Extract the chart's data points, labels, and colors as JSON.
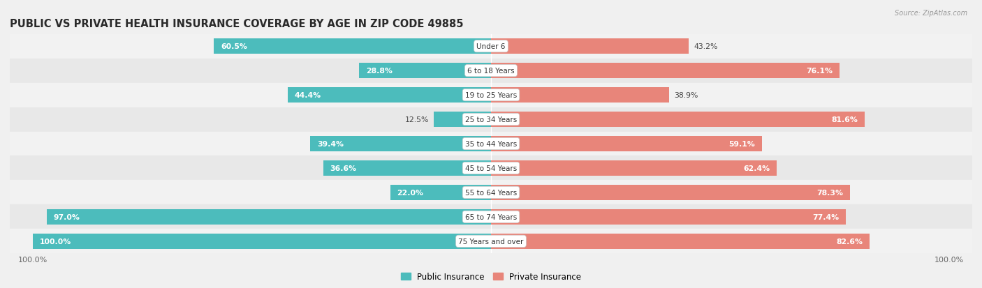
{
  "title": "PUBLIC VS PRIVATE HEALTH INSURANCE COVERAGE BY AGE IN ZIP CODE 49885",
  "source": "Source: ZipAtlas.com",
  "categories": [
    "Under 6",
    "6 to 18 Years",
    "19 to 25 Years",
    "25 to 34 Years",
    "35 to 44 Years",
    "45 to 54 Years",
    "55 to 64 Years",
    "65 to 74 Years",
    "75 Years and over"
  ],
  "public_values": [
    60.5,
    28.8,
    44.4,
    12.5,
    39.4,
    36.6,
    22.0,
    97.0,
    100.0
  ],
  "private_values": [
    43.2,
    76.1,
    38.9,
    81.6,
    59.1,
    62.4,
    78.3,
    77.4,
    82.6
  ],
  "public_color": "#4cbcbc",
  "private_color": "#e8857a",
  "public_label": "Public Insurance",
  "private_label": "Private Insurance",
  "row_colors": [
    "#f2f2f2",
    "#e8e8e8"
  ],
  "max_value": 100.0,
  "title_fontsize": 10.5,
  "label_fontsize": 7.8,
  "bar_height": 0.62,
  "bg_color": "#f0f0f0",
  "pub_inside_threshold": 20,
  "priv_inside_threshold": 55
}
